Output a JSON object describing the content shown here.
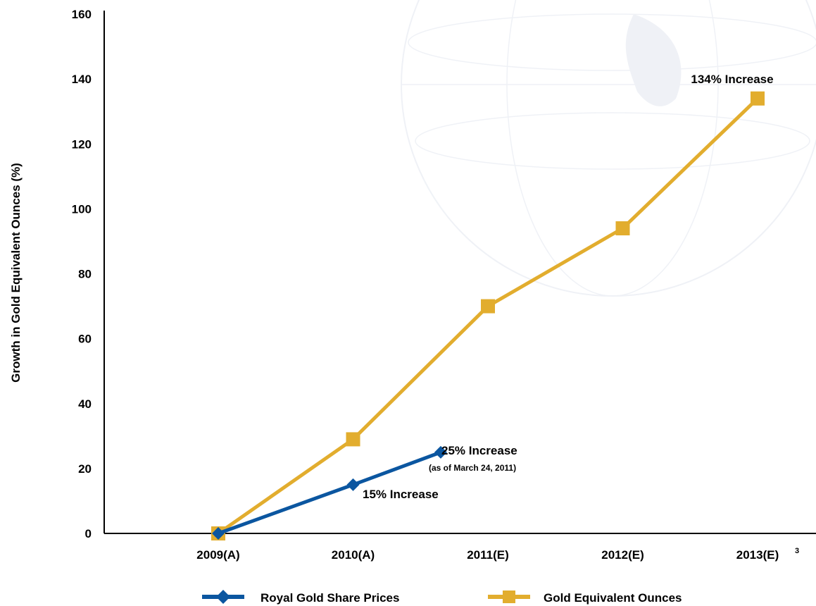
{
  "chart_data": {
    "type": "line",
    "categories": [
      "2009(A)",
      "2010(A)",
      "2011(E)",
      "2012(E)",
      "2013(E)"
    ],
    "category_superscripts": [
      "",
      "",
      "",
      "",
      "3"
    ],
    "ylabel": "Growth in Gold Equivalent Ounces (%)",
    "ylim": [
      0,
      160
    ],
    "yticks": [
      0,
      20,
      40,
      60,
      80,
      100,
      120,
      140,
      160
    ],
    "grid": false,
    "legend_position": "bottom",
    "series": [
      {
        "name": "Royal Gold Share Prices",
        "color": "#0b56a0",
        "marker": "diamond",
        "x": [
          0,
          1,
          1.65
        ],
        "values": [
          0,
          15,
          25
        ]
      },
      {
        "name": "Gold Equivalent Ounces",
        "color": "#e2ad2e",
        "marker": "square",
        "x": [
          0,
          1,
          2,
          3,
          4
        ],
        "values": [
          0,
          29,
          70,
          94,
          134
        ]
      }
    ],
    "annotations": [
      {
        "id": "ann-134",
        "text": "134% Increase"
      },
      {
        "id": "ann-25",
        "text": "25% Increase"
      },
      {
        "id": "ann-25-note",
        "text": "(as of March 24, 2011)"
      },
      {
        "id": "ann-15",
        "text": "15% Increase"
      }
    ]
  }
}
